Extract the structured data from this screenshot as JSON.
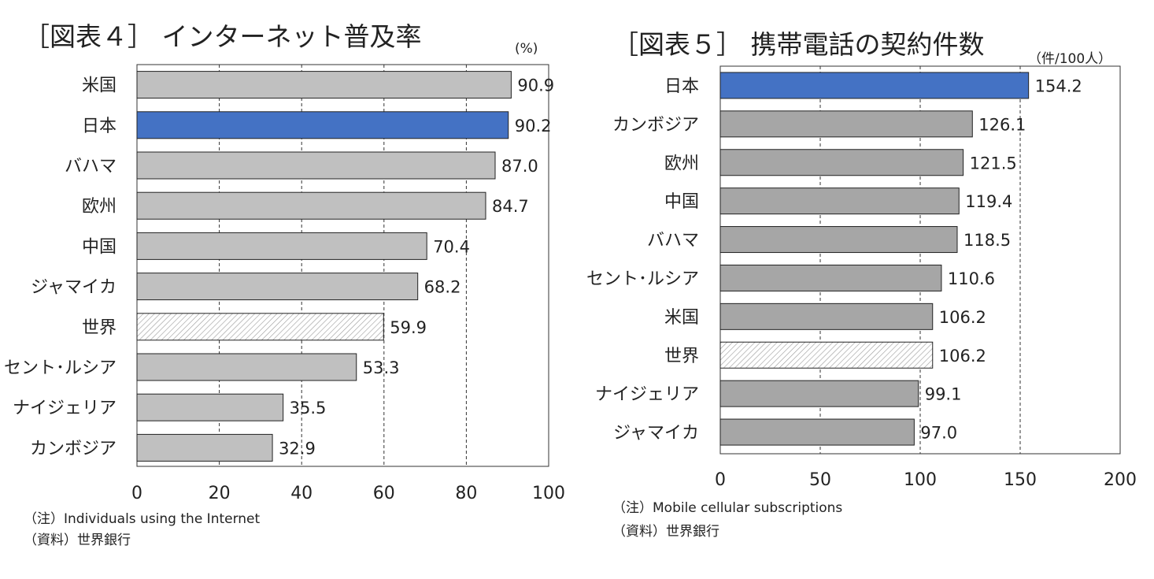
{
  "chart_data": [
    {
      "type": "bar",
      "orientation": "horizontal",
      "title": "［図表４］ インターネット普及率",
      "unit": "(%)",
      "categories": [
        "米国",
        "日本",
        "バハマ",
        "欧州",
        "中国",
        "ジャマイカ",
        "世界",
        "セント･ルシア",
        "ナイジェリア",
        "カンボジア"
      ],
      "values": [
        90.9,
        90.2,
        87.0,
        84.7,
        70.4,
        68.2,
        59.9,
        53.3,
        35.5,
        32.9
      ],
      "value_labels": [
        "90.9",
        "90.2",
        "87.0",
        "84.7",
        "70.4",
        "68.2",
        "59.9",
        "53.3",
        "35.5",
        "32.9"
      ],
      "bar_styles": [
        "gray",
        "blue",
        "gray",
        "gray",
        "gray",
        "gray",
        "hatched",
        "gray",
        "gray",
        "gray"
      ],
      "xlim": [
        0,
        100
      ],
      "xticks": [
        "0",
        "20",
        "40",
        "60",
        "80",
        "100"
      ],
      "gridlines": "dashed vertical",
      "colors": {
        "gray": "#c0c0c0",
        "blue": "#4472c4"
      },
      "notes": [
        "（注）Individuals using the Internet",
        "（資料）世界銀行"
      ]
    },
    {
      "type": "bar",
      "orientation": "horizontal",
      "title": "［図表５］ 携帯電話の契約件数",
      "unit": "（件/100人）",
      "categories": [
        "日本",
        "カンボジア",
        "欧州",
        "中国",
        "バハマ",
        "セント･ルシア",
        "米国",
        "世界",
        "ナイジェリア",
        "ジャマイカ"
      ],
      "values": [
        154.2,
        126.1,
        121.5,
        119.4,
        118.5,
        110.6,
        106.2,
        106.2,
        99.1,
        97.0
      ],
      "value_labels": [
        "154.2",
        "126.1",
        "121.5",
        "119.4",
        "118.5",
        "110.6",
        "106.2",
        "106.2",
        "99.1",
        "97.0"
      ],
      "bar_styles": [
        "blue",
        "gray",
        "gray",
        "gray",
        "gray",
        "gray",
        "gray",
        "hatched",
        "gray",
        "gray"
      ],
      "xlim": [
        0,
        200
      ],
      "xticks": [
        "0",
        "50",
        "100",
        "150",
        "200"
      ],
      "gridlines": "dashed vertical",
      "colors": {
        "gray": "#a6a6a6",
        "blue": "#4472c4"
      },
      "notes": [
        "（注）Mobile cellular subscriptions",
        "（資料）世界銀行"
      ]
    }
  ]
}
